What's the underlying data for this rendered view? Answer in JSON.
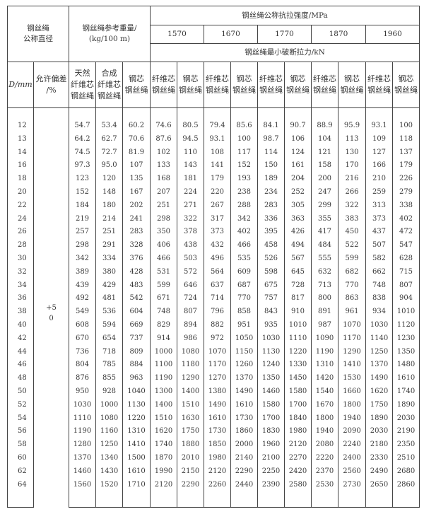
{
  "header": {
    "diameter_group": "钢丝绳\n公称直径",
    "weight_group": "钢丝绳参考重量/\n(kg/100 m)",
    "strength_group": "钢丝绳公称抗拉强度/MPa",
    "strength_grades": [
      "1570",
      "1670",
      "1770",
      "1870",
      "1960"
    ],
    "breaking_force": "钢丝绳最小破断拉力/kN",
    "d_col": "D/mm",
    "tolerance_col": "允许偏差\n/%",
    "weight_cols": [
      "天然\n纤维芯\n钢丝绳",
      "合成\n纤维芯\n钢丝绳",
      "钢芯\n钢丝绳"
    ],
    "core_cols": [
      "纤维芯\n钢丝绳",
      "钢芯\n钢丝绳"
    ]
  },
  "tolerance": "+5\n0",
  "rows": [
    [
      "12",
      "54.7",
      "53.4",
      "60.2",
      "74.6",
      "80.5",
      "79.4",
      "85.6",
      "84.1",
      "90.7",
      "88.9",
      "95.9",
      "93.1",
      "100"
    ],
    [
      "13",
      "64.2",
      "62.7",
      "70.6",
      "87.6",
      "94.5",
      "93.1",
      "100",
      "98.7",
      "106",
      "104",
      "113",
      "109",
      "118"
    ],
    [
      "14",
      "74.5",
      "72.7",
      "81.9",
      "102",
      "110",
      "108",
      "117",
      "114",
      "124",
      "121",
      "130",
      "127",
      "137"
    ],
    [
      "16",
      "97.3",
      "95.0",
      "107",
      "133",
      "143",
      "141",
      "152",
      "150",
      "161",
      "158",
      "170",
      "166",
      "179"
    ],
    [
      "18",
      "123",
      "120",
      "135",
      "168",
      "181",
      "179",
      "193",
      "189",
      "204",
      "200",
      "216",
      "210",
      "226"
    ],
    [
      "20",
      "152",
      "148",
      "167",
      "207",
      "224",
      "220",
      "238",
      "234",
      "252",
      "247",
      "266",
      "259",
      "279"
    ],
    [
      "22",
      "184",
      "180",
      "202",
      "251",
      "271",
      "267",
      "288",
      "283",
      "305",
      "299",
      "322",
      "313",
      "338"
    ],
    [
      "24",
      "219",
      "214",
      "241",
      "298",
      "322",
      "317",
      "342",
      "336",
      "363",
      "355",
      "383",
      "373",
      "402"
    ],
    [
      "26",
      "257",
      "251",
      "283",
      "350",
      "378",
      "373",
      "402",
      "395",
      "426",
      "417",
      "450",
      "437",
      "472"
    ],
    [
      "28",
      "298",
      "291",
      "328",
      "406",
      "438",
      "432",
      "466",
      "458",
      "494",
      "484",
      "522",
      "507",
      "547"
    ],
    [
      "30",
      "342",
      "334",
      "376",
      "466",
      "503",
      "496",
      "535",
      "526",
      "567",
      "555",
      "599",
      "582",
      "628"
    ],
    [
      "32",
      "389",
      "380",
      "428",
      "531",
      "572",
      "564",
      "609",
      "598",
      "645",
      "632",
      "682",
      "662",
      "715"
    ],
    [
      "34",
      "439",
      "429",
      "483",
      "599",
      "646",
      "637",
      "687",
      "675",
      "728",
      "713",
      "770",
      "748",
      "807"
    ],
    [
      "36",
      "492",
      "481",
      "542",
      "671",
      "724",
      "714",
      "770",
      "757",
      "817",
      "800",
      "863",
      "838",
      "904"
    ],
    [
      "38",
      "549",
      "536",
      "604",
      "748",
      "807",
      "796",
      "858",
      "843",
      "910",
      "891",
      "961",
      "934",
      "1010"
    ],
    [
      "40",
      "608",
      "594",
      "669",
      "829",
      "894",
      "882",
      "951",
      "935",
      "1010",
      "987",
      "1070",
      "1030",
      "1120"
    ],
    [
      "42",
      "670",
      "654",
      "737",
      "914",
      "986",
      "972",
      "1050",
      "1030",
      "1110",
      "1090",
      "1170",
      "1140",
      "1230"
    ],
    [
      "44",
      "736",
      "718",
      "809",
      "1000",
      "1080",
      "1070",
      "1150",
      "1130",
      "1220",
      "1190",
      "1290",
      "1250",
      "1350"
    ],
    [
      "46",
      "804",
      "785",
      "884",
      "1100",
      "1180",
      "1170",
      "1260",
      "1240",
      "1330",
      "1310",
      "1410",
      "1370",
      "1480"
    ],
    [
      "48",
      "876",
      "855",
      "963",
      "1190",
      "1290",
      "1270",
      "1370",
      "1350",
      "1450",
      "1420",
      "1530",
      "1490",
      "1610"
    ],
    [
      "50",
      "950",
      "928",
      "1040",
      "1300",
      "1400",
      "1380",
      "1490",
      "1460",
      "1580",
      "1540",
      "1660",
      "1620",
      "1740"
    ],
    [
      "52",
      "1030",
      "1000",
      "1130",
      "1400",
      "1510",
      "1490",
      "1610",
      "1580",
      "1700",
      "1670",
      "1800",
      "1750",
      "1890"
    ],
    [
      "54",
      "1110",
      "1080",
      "1220",
      "1510",
      "1630",
      "1610",
      "1730",
      "1700",
      "1840",
      "1800",
      "1940",
      "1890",
      "2030"
    ],
    [
      "56",
      "1190",
      "1160",
      "1310",
      "1620",
      "1750",
      "1730",
      "1860",
      "1830",
      "1980",
      "1940",
      "2090",
      "2030",
      "2190"
    ],
    [
      "58",
      "1280",
      "1250",
      "1410",
      "1740",
      "1880",
      "1850",
      "2000",
      "1960",
      "2120",
      "2080",
      "2240",
      "2180",
      "2350"
    ],
    [
      "60",
      "1370",
      "1340",
      "1500",
      "1870",
      "2010",
      "1980",
      "2140",
      "2100",
      "2270",
      "2220",
      "2400",
      "2330",
      "2510"
    ],
    [
      "62",
      "1460",
      "1430",
      "1610",
      "1990",
      "2150",
      "2120",
      "2290",
      "2250",
      "2420",
      "2370",
      "2560",
      "2490",
      "2680"
    ],
    [
      "64",
      "1560",
      "1520",
      "1710",
      "2120",
      "2290",
      "2260",
      "2440",
      "2390",
      "2580",
      "2530",
      "2730",
      "2650",
      "2860"
    ]
  ]
}
